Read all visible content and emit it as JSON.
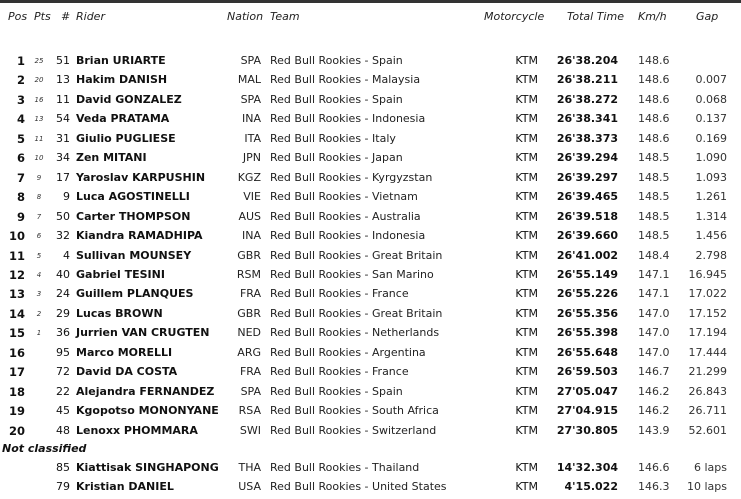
{
  "headers": {
    "pos": "Pos",
    "pts": "Pts",
    "num": "#",
    "rider": "Rider",
    "nation": "Nation",
    "team": "Team",
    "motorcycle": "Motorcycle",
    "time": "Total Time",
    "kmh": "Km/h",
    "gap": "Gap"
  },
  "rows": [
    [
      "1",
      "25",
      "51",
      "Brian URIARTE",
      "SPA",
      "Red Bull Rookies - Spain",
      "KTM",
      "26'38.204",
      "148.6",
      ""
    ],
    [
      "2",
      "20",
      "13",
      "Hakim DANISH",
      "MAL",
      "Red Bull Rookies - Malaysia",
      "KTM",
      "26'38.211",
      "148.6",
      "0.007"
    ],
    [
      "3",
      "16",
      "11",
      "David GONZALEZ",
      "SPA",
      "Red Bull Rookies - Spain",
      "KTM",
      "26'38.272",
      "148.6",
      "0.068"
    ],
    [
      "4",
      "13",
      "54",
      "Veda PRATAMA",
      "INA",
      "Red Bull Rookies - Indonesia",
      "KTM",
      "26'38.341",
      "148.6",
      "0.137"
    ],
    [
      "5",
      "11",
      "31",
      "Giulio PUGLIESE",
      "ITA",
      "Red Bull Rookies - Italy",
      "KTM",
      "26'38.373",
      "148.6",
      "0.169"
    ],
    [
      "6",
      "10",
      "34",
      "Zen MITANI",
      "JPN",
      "Red Bull Rookies - Japan",
      "KTM",
      "26'39.294",
      "148.5",
      "1.090"
    ],
    [
      "7",
      "9",
      "17",
      "Yaroslav KARPUSHIN",
      "KGZ",
      "Red Bull Rookies - Kyrgyzstan",
      "KTM",
      "26'39.297",
      "148.5",
      "1.093"
    ],
    [
      "8",
      "8",
      "9",
      "Luca AGOSTINELLI",
      "VIE",
      "Red Bull Rookies - Vietnam",
      "KTM",
      "26'39.465",
      "148.5",
      "1.261"
    ],
    [
      "9",
      "7",
      "50",
      "Carter THOMPSON",
      "AUS",
      "Red Bull Rookies - Australia",
      "KTM",
      "26'39.518",
      "148.5",
      "1.314"
    ],
    [
      "10",
      "6",
      "32",
      "Kiandra RAMADHIPA",
      "INA",
      "Red Bull Rookies - Indonesia",
      "KTM",
      "26'39.660",
      "148.5",
      "1.456"
    ],
    [
      "11",
      "5",
      "4",
      "Sullivan MOUNSEY",
      "GBR",
      "Red Bull Rookies - Great Britain",
      "KTM",
      "26'41.002",
      "148.4",
      "2.798"
    ],
    [
      "12",
      "4",
      "40",
      "Gabriel TESINI",
      "RSM",
      "Red Bull Rookies - San Marino",
      "KTM",
      "26'55.149",
      "147.1",
      "16.945"
    ],
    [
      "13",
      "3",
      "24",
      "Guillem PLANQUES",
      "FRA",
      "Red Bull Rookies - France",
      "KTM",
      "26'55.226",
      "147.1",
      "17.022"
    ],
    [
      "14",
      "2",
      "29",
      "Lucas BROWN",
      "GBR",
      "Red Bull Rookies - Great Britain",
      "KTM",
      "26'55.356",
      "147.0",
      "17.152"
    ],
    [
      "15",
      "1",
      "36",
      "Jurrien VAN CRUGTEN",
      "NED",
      "Red Bull Rookies - Netherlands",
      "KTM",
      "26'55.398",
      "147.0",
      "17.194"
    ],
    [
      "16",
      "",
      "95",
      "Marco MORELLI",
      "ARG",
      "Red Bull Rookies - Argentina",
      "KTM",
      "26'55.648",
      "147.0",
      "17.444"
    ],
    [
      "17",
      "",
      "72",
      "David DA COSTA",
      "FRA",
      "Red Bull Rookies - France",
      "KTM",
      "26'59.503",
      "146.7",
      "21.299"
    ],
    [
      "18",
      "",
      "22",
      "Alejandra FERNANDEZ",
      "SPA",
      "Red Bull Rookies - Spain",
      "KTM",
      "27'05.047",
      "146.2",
      "26.843"
    ],
    [
      "19",
      "",
      "45",
      "Kgopotso MONONYANE",
      "RSA",
      "Red Bull Rookies - South Africa",
      "KTM",
      "27'04.915",
      "146.2",
      "26.711"
    ],
    [
      "20",
      "",
      "48",
      "Lenoxx PHOMMARA",
      "SWI",
      "Red Bull Rookies - Switzerland",
      "KTM",
      "27'30.805",
      "143.9",
      "52.601"
    ]
  ],
  "not_classified_label": "Not classified",
  "nc_rows": [
    [
      "",
      "",
      "85",
      "Kiattisak SINGHAPONG",
      "THA",
      "Red Bull Rookies - Thailand",
      "KTM",
      "14'32.304",
      "146.6",
      "6 laps"
    ],
    [
      "",
      "",
      "79",
      "Kristian DANIEL",
      "USA",
      "Red Bull Rookies - United States",
      "KTM",
      "4'15.022",
      "146.3",
      "10 laps"
    ]
  ]
}
